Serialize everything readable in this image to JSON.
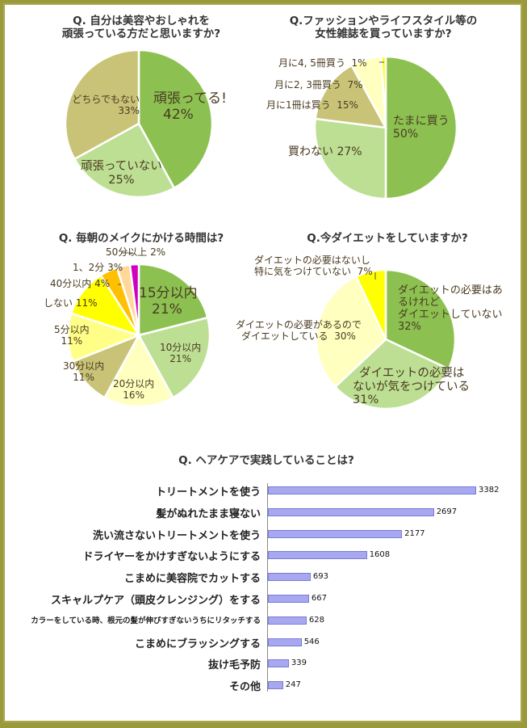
{
  "colors": {
    "green": "#8cc152",
    "light_green": "#bddf93",
    "olive": "#c9c378",
    "cream": "#ffffc0",
    "pale_yellow": "#ffff88",
    "yellow": "#ffff00",
    "orange": "#ffc000",
    "peach": "#ffd89a",
    "magenta": "#d000c0",
    "bar": "#a8a8f0"
  },
  "chart_data": [
    {
      "type": "pie",
      "title": "Q. 自分は美容やおしゃれを頑張っている方だと思いますか?",
      "title_lines": [
        "Q. 自分は美容やおしゃれを",
        "頑張っている方だと思いますか?"
      ],
      "slices": [
        {
          "name": "頑張ってる!",
          "value": 42,
          "color": "#8cc152"
        },
        {
          "name": "頑張っていない",
          "value": 25,
          "color": "#bddf93"
        },
        {
          "name": "どちらでもない",
          "value": 33,
          "color": "#c9c378"
        }
      ]
    },
    {
      "type": "pie",
      "title": "Q.ファッションやライフスタイル等の女性雑誌を買っていますか?",
      "title_lines": [
        "Q.ファッションやライフスタイル等の",
        "女性雑誌を買っていますか?"
      ],
      "slices": [
        {
          "name": "たまに買う",
          "value": 50,
          "color": "#8cc152"
        },
        {
          "name": "買わない",
          "value": 27,
          "color": "#bddf93"
        },
        {
          "name": "月に1冊は買う",
          "value": 15,
          "color": "#c9c378"
        },
        {
          "name": "月に2, 3冊買う",
          "value": 7,
          "color": "#ffffc0"
        },
        {
          "name": "月に4, 5冊買う",
          "value": 1,
          "color": "#ffff00"
        }
      ]
    },
    {
      "type": "pie",
      "title": "Q. 毎朝のメイクにかける時間は?",
      "title_lines": [
        "Q. 毎朝のメイクにかける時間は?"
      ],
      "slices": [
        {
          "name": "15分以内",
          "value": 21,
          "color": "#8cc152"
        },
        {
          "name": "10分以内",
          "value": 21,
          "color": "#bddf93"
        },
        {
          "name": "20分以内",
          "value": 16,
          "color": "#ffffc0"
        },
        {
          "name": "30分以内",
          "value": 11,
          "color": "#c9c378"
        },
        {
          "name": "5分以内",
          "value": 11,
          "color": "#ffff88"
        },
        {
          "name": "しない",
          "value": 11,
          "color": "#ffff00"
        },
        {
          "name": "40分以内",
          "value": 4,
          "color": "#ffc000"
        },
        {
          "name": "1、2分",
          "value": 3,
          "color": "#ffd89a"
        },
        {
          "name": "50分以上",
          "value": 2,
          "color": "#d000c0"
        }
      ]
    },
    {
      "type": "pie",
      "title": "Q.今ダイエットをしていますか?",
      "title_lines": [
        "Q.今ダイエットをしていますか?"
      ],
      "slices": [
        {
          "name": "ダイエットの必要はあるけれどダイエットしていない",
          "value": 32,
          "color": "#8cc152"
        },
        {
          "name": "ダイエットの必要はないが気をつけている",
          "value": 31,
          "color": "#bddf93"
        },
        {
          "name": "ダイエットの必要があるのでダイエットしている",
          "value": 30,
          "color": "#ffffc0"
        },
        {
          "name": "ダイエットの必要はないし特に気をつけていない",
          "value": 7,
          "color": "#ffff00"
        }
      ]
    },
    {
      "type": "bar",
      "orientation": "horizontal",
      "title": "Q. ヘアケアで実践していることは?",
      "categories": [
        "トリートメントを使う",
        "髪がぬれたまま寝ない",
        "洗い流さないトリートメントを使う",
        "ドライヤーをかけすぎないようにする",
        "こまめに美容院でカットする",
        "スキャルプケア（頭皮クレンジング）をする",
        "カラーをしている時、根元の髪が伸びすぎないうちにリタッチする",
        "こまめにブラッシングする",
        "抜け毛予防",
        "その他"
      ],
      "values": [
        3382,
        2697,
        2177,
        1608,
        693,
        667,
        628,
        546,
        339,
        247
      ]
    }
  ],
  "labels": {
    "p1": [
      [
        "頑張ってる!",
        "42%"
      ],
      [
        "頑張っていない",
        "25%"
      ],
      [
        "どちらでもない",
        "33%"
      ]
    ],
    "p2": [
      [
        "たまに買う",
        "50%"
      ],
      [
        "買わない",
        "27%"
      ],
      [
        "月に1冊は買う",
        "15%"
      ],
      [
        "月に2, 3冊買う",
        "7%"
      ],
      [
        "月に4, 5冊買う",
        "1%"
      ]
    ],
    "p3": [
      [
        "15分以内",
        "21%"
      ],
      [
        "10分以内",
        "21%"
      ],
      [
        "20分以内",
        "16%"
      ],
      [
        "30分以内",
        "11%"
      ],
      [
        "5分以内",
        "11%"
      ],
      [
        "しない",
        "11%"
      ],
      [
        "40分以内",
        "4%"
      ],
      [
        "1、2分",
        "3%"
      ],
      [
        "50分以上",
        "2%"
      ]
    ],
    "p4": [
      [
        "ダイエットの必要はあ",
        "るけれど",
        "ダイエットしていない",
        "32%"
      ],
      [
        "ダイエットの必要は",
        "ないが気をつけている",
        "31%"
      ],
      [
        "ダイエットの必要があるので",
        "ダイエットしている",
        "30%"
      ],
      [
        "ダイエットの必要はないし",
        "特に気をつけていない",
        "7%"
      ]
    ]
  }
}
